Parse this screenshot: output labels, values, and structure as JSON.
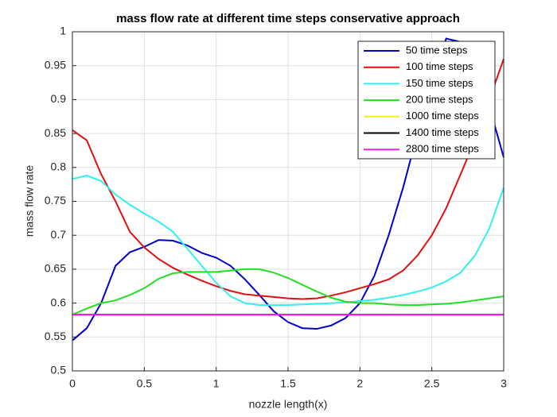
{
  "chart_data": {
    "type": "line",
    "title": "mass flow rate at different time steps conservative approach",
    "xlabel": "nozzle length(x)",
    "ylabel": "mass flow rate",
    "x": [
      0,
      0.1,
      0.2,
      0.3,
      0.4,
      0.5,
      0.6,
      0.7,
      0.8,
      0.9,
      1.0,
      1.1,
      1.2,
      1.3,
      1.4,
      1.5,
      1.6,
      1.7,
      1.8,
      1.9,
      2.0,
      2.1,
      2.2,
      2.3,
      2.4,
      2.5,
      2.6,
      2.7,
      2.8,
      2.9,
      3.0
    ],
    "series": [
      {
        "name": "50 time steps",
        "color": "#0000c8",
        "values": [
          0.545,
          0.563,
          0.6,
          0.655,
          0.675,
          0.683,
          0.693,
          0.692,
          0.685,
          0.674,
          0.667,
          0.655,
          0.635,
          0.612,
          0.588,
          0.572,
          0.563,
          0.562,
          0.567,
          0.578,
          0.6,
          0.64,
          0.7,
          0.77,
          0.85,
          0.925,
          0.99,
          0.985,
          0.95,
          0.89,
          0.815
        ]
      },
      {
        "name": "100 time steps",
        "color": "#e01010",
        "values": [
          0.855,
          0.84,
          0.79,
          0.75,
          0.705,
          0.682,
          0.665,
          0.652,
          0.642,
          0.633,
          0.625,
          0.618,
          0.613,
          0.611,
          0.609,
          0.607,
          0.606,
          0.607,
          0.611,
          0.616,
          0.622,
          0.628,
          0.635,
          0.648,
          0.67,
          0.7,
          0.74,
          0.79,
          0.84,
          0.9,
          0.96
        ]
      },
      {
        "name": "150 time steps",
        "color": "#30f0f0",
        "values": [
          0.783,
          0.788,
          0.78,
          0.76,
          0.745,
          0.732,
          0.72,
          0.705,
          0.68,
          0.655,
          0.63,
          0.61,
          0.6,
          0.597,
          0.597,
          0.597,
          0.598,
          0.599,
          0.6,
          0.601,
          0.603,
          0.605,
          0.608,
          0.612,
          0.617,
          0.623,
          0.632,
          0.645,
          0.67,
          0.71,
          0.77
        ]
      },
      {
        "name": "200 time steps",
        "color": "#20e020",
        "values": [
          0.583,
          0.592,
          0.6,
          0.604,
          0.612,
          0.622,
          0.636,
          0.644,
          0.646,
          0.646,
          0.646,
          0.648,
          0.65,
          0.65,
          0.645,
          0.637,
          0.627,
          0.617,
          0.608,
          0.602,
          0.6,
          0.6,
          0.598,
          0.597,
          0.597,
          0.598,
          0.599,
          0.601,
          0.604,
          0.607,
          0.61
        ]
      },
      {
        "name": "1000 time steps",
        "color": "#f0f020",
        "values": [
          0.583,
          0.583,
          0.583,
          0.583,
          0.583,
          0.583,
          0.583,
          0.583,
          0.583,
          0.583,
          0.583,
          0.583,
          0.583,
          0.583,
          0.583,
          0.583,
          0.583,
          0.583,
          0.583,
          0.583,
          0.583,
          0.583,
          0.583,
          0.583,
          0.583,
          0.583,
          0.583,
          0.583,
          0.583,
          0.583,
          0.583
        ]
      },
      {
        "name": "1400 time steps",
        "color": "#000000",
        "values": [
          0.583,
          0.583,
          0.583,
          0.583,
          0.583,
          0.583,
          0.583,
          0.583,
          0.583,
          0.583,
          0.583,
          0.583,
          0.583,
          0.583,
          0.583,
          0.583,
          0.583,
          0.583,
          0.583,
          0.583,
          0.583,
          0.583,
          0.583,
          0.583,
          0.583,
          0.583,
          0.583,
          0.583,
          0.583,
          0.583,
          0.583
        ]
      },
      {
        "name": "2800 time steps",
        "color": "#f020f0",
        "values": [
          0.583,
          0.583,
          0.583,
          0.583,
          0.583,
          0.583,
          0.583,
          0.583,
          0.583,
          0.583,
          0.583,
          0.583,
          0.583,
          0.583,
          0.583,
          0.583,
          0.583,
          0.583,
          0.583,
          0.583,
          0.583,
          0.583,
          0.583,
          0.583,
          0.583,
          0.583,
          0.583,
          0.583,
          0.583,
          0.583,
          0.583
        ]
      }
    ],
    "xlim": [
      0,
      3
    ],
    "xticks": [
      0,
      0.5,
      1,
      1.5,
      2,
      2.5,
      3
    ],
    "ylim": [
      0.5,
      1
    ],
    "yticks": [
      0.5,
      0.55,
      0.6,
      0.65,
      0.7,
      0.75,
      0.8,
      0.85,
      0.9,
      0.95,
      1
    ],
    "grid": true,
    "legend": "top-right"
  }
}
